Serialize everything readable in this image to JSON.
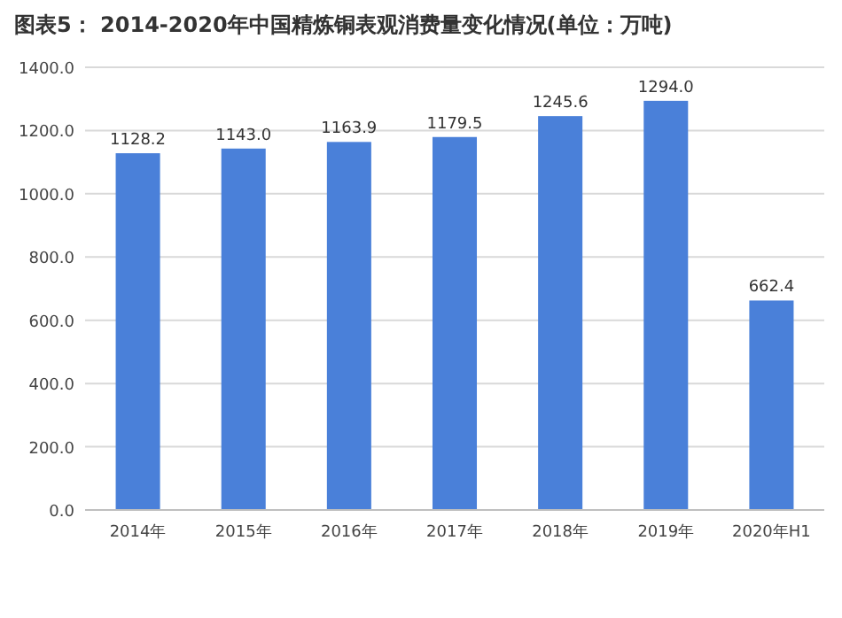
{
  "chart_data": {
    "type": "bar",
    "title": "图表5： 2014-2020年中国精炼铜表观消费量变化情况(单位：万吨)",
    "categories": [
      "2014年",
      "2015年",
      "2016年",
      "2017年",
      "2018年",
      "2019年",
      "2020年H1"
    ],
    "values": [
      1128.2,
      1143.0,
      1163.9,
      1179.5,
      1245.6,
      1294.0,
      662.4
    ],
    "color": "#4a80d9",
    "ylim": [
      0,
      1400
    ],
    "yticks": [
      {
        "value": 0,
        "label": "0.0"
      },
      {
        "value": 200,
        "label": "200.0"
      },
      {
        "value": 400,
        "label": "400.0"
      },
      {
        "value": 600,
        "label": "600.0"
      },
      {
        "value": 800,
        "label": "800.0"
      },
      {
        "value": 1000,
        "label": "1000.0"
      },
      {
        "value": 1200,
        "label": "1200.0"
      },
      {
        "value": 1400,
        "label": "1400.0"
      }
    ],
    "value_labels": [
      "1128.2",
      "1143.0",
      "1163.9",
      "1179.5",
      "1245.6",
      "1294.0",
      "662.4"
    ],
    "grid": "y"
  }
}
